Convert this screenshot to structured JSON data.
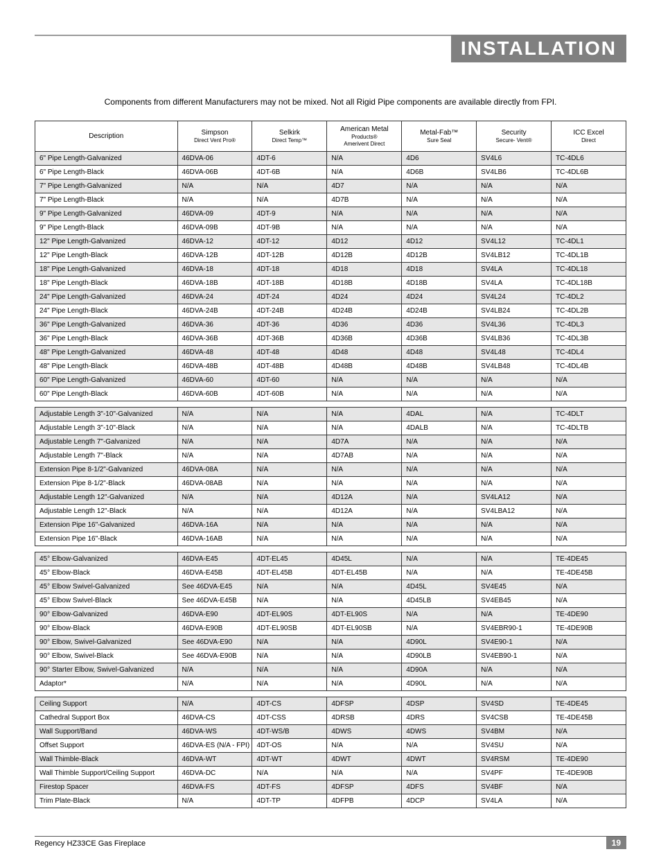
{
  "header": {
    "title": "INSTALLATION"
  },
  "note": "Components from different Manufacturers may not be mixed.  Not all Rigid Pipe components are available directly from FPI.",
  "columns": [
    "Description",
    "Simpson\nDirect Vent Pro®",
    "Selkirk\nDirect Temp™",
    "American Metal\nProducts®\nAmerivent Direct",
    "Metal-Fab™\nSure Seal",
    "Security\nSecure- Vent®",
    "ICC Excel\nDirect"
  ],
  "groups": [
    {
      "rows": [
        {
          "s": true,
          "c": [
            "6\" Pipe Length-Galvanized",
            "46DVA-06",
            "4DT-6",
            "N/A",
            "4D6",
            "SV4L6",
            "TC-4DL6"
          ]
        },
        {
          "s": false,
          "c": [
            "6\" Pipe Length-Black",
            "46DVA-06B",
            "4DT-6B",
            "N/A",
            "4D6B",
            "SV4LB6",
            "TC-4DL6B"
          ]
        },
        {
          "s": true,
          "c": [
            "7\" Pipe Length-Galvanized",
            "N/A",
            "N/A",
            "4D7",
            "N/A",
            "N/A",
            "N/A"
          ]
        },
        {
          "s": false,
          "c": [
            "7\" Pipe Length-Black",
            "N/A",
            "N/A",
            "4D7B",
            "N/A",
            "N/A",
            "N/A"
          ]
        },
        {
          "s": true,
          "c": [
            "9\" Pipe Length-Galvanized",
            "46DVA-09",
            "4DT-9",
            "N/A",
            "N/A",
            "N/A",
            "N/A"
          ]
        },
        {
          "s": false,
          "c": [
            "9\" Pipe Length-Black",
            "46DVA-09B",
            "4DT-9B",
            "N/A",
            "N/A",
            "N/A",
            "N/A"
          ]
        },
        {
          "s": true,
          "c": [
            "12\" Pipe Length-Galvanized",
            "46DVA-12",
            "4DT-12",
            "4D12",
            "4D12",
            "SV4L12",
            "TC-4DL1"
          ]
        },
        {
          "s": false,
          "c": [
            "12\" Pipe Length-Black",
            "46DVA-12B",
            "4DT-12B",
            "4D12B",
            "4D12B",
            "SV4LB12",
            "TC-4DL1B"
          ]
        },
        {
          "s": true,
          "c": [
            "18\" Pipe Length-Galvanized",
            "46DVA-18",
            "4DT-18",
            "4D18",
            "4D18",
            "SV4LA",
            "TC-4DL18"
          ]
        },
        {
          "s": false,
          "c": [
            "18\" Pipe Length-Black",
            "46DVA-18B",
            "4DT-18B",
            "4D18B",
            "4D18B",
            "SV4LA",
            "TC-4DL18B"
          ]
        },
        {
          "s": true,
          "c": [
            "24\" Pipe Length-Galvanized",
            "46DVA-24",
            "4DT-24",
            "4D24",
            "4D24",
            "SV4L24",
            "TC-4DL2"
          ]
        },
        {
          "s": false,
          "c": [
            "24\" Pipe Length-Black",
            "46DVA-24B",
            "4DT-24B",
            "4D24B",
            "4D24B",
            "SV4LB24",
            "TC-4DL2B"
          ]
        },
        {
          "s": true,
          "c": [
            "36\" Pipe Length-Galvanized",
            "46DVA-36",
            "4DT-36",
            "4D36",
            "4D36",
            "SV4L36",
            "TC-4DL3"
          ]
        },
        {
          "s": false,
          "c": [
            "36\" Pipe Length-Black",
            "46DVA-36B",
            "4DT-36B",
            "4D36B",
            "4D36B",
            "SV4LB36",
            "TC-4DL3B"
          ]
        },
        {
          "s": true,
          "c": [
            "48\" Pipe Length-Galvanized",
            "46DVA-48",
            "4DT-48",
            "4D48",
            "4D48",
            "SV4L48",
            "TC-4DL4"
          ]
        },
        {
          "s": false,
          "c": [
            "48\" Pipe Length-Black",
            "46DVA-48B",
            "4DT-48B",
            "4D48B",
            "4D48B",
            "SV4LB48",
            "TC-4DL4B"
          ]
        },
        {
          "s": true,
          "c": [
            "60\" Pipe Length-Galvanized",
            "46DVA-60",
            "4DT-60",
            "N/A",
            "N/A",
            "N/A",
            "N/A"
          ]
        },
        {
          "s": false,
          "c": [
            "60\" Pipe Length-Black",
            "46DVA-60B",
            "4DT-60B",
            "N/A",
            "N/A",
            "N/A",
            "N/A"
          ]
        }
      ]
    },
    {
      "rows": [
        {
          "s": true,
          "c": [
            "Adjustable Length 3\"-10\"-Galvanized",
            "N/A",
            "N/A",
            "N/A",
            "4DAL",
            "N/A",
            "TC-4DLT"
          ]
        },
        {
          "s": false,
          "c": [
            "Adjustable Length 3\"-10\"-Black",
            "N/A",
            "N/A",
            "N/A",
            "4DALB",
            "N/A",
            "TC-4DLTB"
          ]
        },
        {
          "s": true,
          "c": [
            "Adjustable Length 7\"-Galvanized",
            "N/A",
            "N/A",
            "4D7A",
            "N/A",
            "N/A",
            "N/A"
          ]
        },
        {
          "s": false,
          "c": [
            "Adjustable Length 7\"-Black",
            "N/A",
            "N/A",
            "4D7AB",
            "N/A",
            "N/A",
            "N/A"
          ]
        },
        {
          "s": true,
          "c": [
            "Extension Pipe 8-1/2\"-Galvanized",
            "46DVA-08A",
            "N/A",
            "N/A",
            "N/A",
            "N/A",
            "N/A"
          ]
        },
        {
          "s": false,
          "c": [
            "Extension Pipe 8-1/2\"-Black",
            "46DVA-08AB",
            "N/A",
            "N/A",
            "N/A",
            "N/A",
            "N/A"
          ]
        },
        {
          "s": true,
          "c": [
            "Adjustable Length 12\"-Galvanized",
            "N/A",
            "N/A",
            "4D12A",
            "N/A",
            "SV4LA12",
            "N/A"
          ]
        },
        {
          "s": false,
          "c": [
            "Adjustable Length 12\"-Black",
            "N/A",
            "N/A",
            "4D12A",
            "N/A",
            "SV4LBA12",
            "N/A"
          ]
        },
        {
          "s": true,
          "c": [
            "Extension Pipe 16\"-Galvanized",
            "46DVA-16A",
            "N/A",
            "N/A",
            "N/A",
            "N/A",
            "N/A"
          ]
        },
        {
          "s": false,
          "c": [
            "Extension Pipe 16\"-Black",
            "46DVA-16AB",
            "N/A",
            "N/A",
            "N/A",
            "N/A",
            "N/A"
          ]
        }
      ]
    },
    {
      "rows": [
        {
          "s": true,
          "c": [
            "45° Elbow-Galvanized",
            "46DVA-E45",
            "4DT-EL45",
            "4D45L",
            "N/A",
            "N/A",
            "TE-4DE45"
          ]
        },
        {
          "s": false,
          "c": [
            "45° Elbow-Black",
            "46DVA-E45B",
            "4DT-EL45B",
            "4DT-EL45B",
            "N/A",
            "N/A",
            "TE-4DE45B"
          ]
        },
        {
          "s": true,
          "c": [
            "45° Elbow Swivel-Galvanized",
            "See 46DVA-E45",
            "N/A",
            "N/A",
            "4D45L",
            "SV4E45",
            "N/A"
          ]
        },
        {
          "s": false,
          "c": [
            "45° Elbow Swivel-Black",
            "See 46DVA-E45B",
            "N/A",
            "N/A",
            "4D45LB",
            "SV4EB45",
            "N/A"
          ]
        },
        {
          "s": true,
          "c": [
            "90° Elbow-Galvanized",
            "46DVA-E90",
            "4DT-EL90S",
            "4DT-EL90S",
            "N/A",
            "N/A",
            "TE-4DE90"
          ]
        },
        {
          "s": false,
          "c": [
            "90° Elbow-Black",
            "46DVA-E90B",
            "4DT-EL90SB",
            "4DT-EL90SB",
            "N/A",
            "SV4EBR90-1",
            "TE-4DE90B"
          ]
        },
        {
          "s": true,
          "c": [
            "90° Elbow, Swivel-Galvanized",
            "See 46DVA-E90",
            "N/A",
            "N/A",
            "4D90L",
            "SV4E90-1",
            "N/A"
          ]
        },
        {
          "s": false,
          "c": [
            "90° Elbow, Swivel-Black",
            "See 46DVA-E90B",
            "N/A",
            "N/A",
            "4D90LB",
            "SV4EB90-1",
            "N/A"
          ]
        },
        {
          "s": true,
          "c": [
            "90° Starter Elbow, Swivel-Galvanized",
            "N/A",
            "N/A",
            "N/A",
            "4D90A",
            "N/A",
            "N/A"
          ]
        },
        {
          "s": false,
          "c": [
            "Adaptor*",
            "N/A",
            "N/A",
            "N/A",
            "4D90L",
            "N/A",
            "N/A"
          ]
        }
      ]
    },
    {
      "rows": [
        {
          "s": true,
          "c": [
            "Ceiling Support",
            "N/A",
            "4DT-CS",
            "4DFSP",
            "4DSP",
            "SV4SD",
            "TE-4DE45"
          ]
        },
        {
          "s": false,
          "c": [
            "Cathedral Support Box",
            "46DVA-CS",
            "4DT-CSS",
            "4DRSB",
            "4DRS",
            "SV4CSB",
            "TE-4DE45B"
          ]
        },
        {
          "s": true,
          "c": [
            "Wall Support/Band",
            "46DVA-WS",
            "4DT-WS/B",
            "4DWS",
            "4DWS",
            "SV4BM",
            "N/A"
          ]
        },
        {
          "s": false,
          "c": [
            "Offset Support",
            "46DVA-ES (N/A - FPI)",
            "4DT-OS",
            "N/A",
            "N/A",
            "SV4SU",
            "N/A"
          ]
        },
        {
          "s": true,
          "c": [
            "Wall Thimble-Black",
            "46DVA-WT",
            "4DT-WT",
            "4DWT",
            "4DWT",
            "SV4RSM",
            "TE-4DE90"
          ]
        },
        {
          "s": false,
          "c": [
            "Wall Thimble Support/Ceiling Support",
            "46DVA-DC",
            "N/A",
            "N/A",
            "N/A",
            "SV4PF",
            "TE-4DE90B"
          ]
        },
        {
          "s": true,
          "c": [
            "Firestop Spacer",
            "46DVA-FS",
            "4DT-FS",
            "4DFSP",
            "4DFS",
            "SV4BF",
            "N/A"
          ]
        },
        {
          "s": false,
          "c": [
            "Trim Plate-Black",
            "N/A",
            "4DT-TP",
            "4DFPB",
            "4DCP",
            "SV4LA",
            "N/A"
          ]
        }
      ]
    }
  ],
  "footer": {
    "product": "Regency HZ33CE Gas Fireplace",
    "page": "19"
  }
}
